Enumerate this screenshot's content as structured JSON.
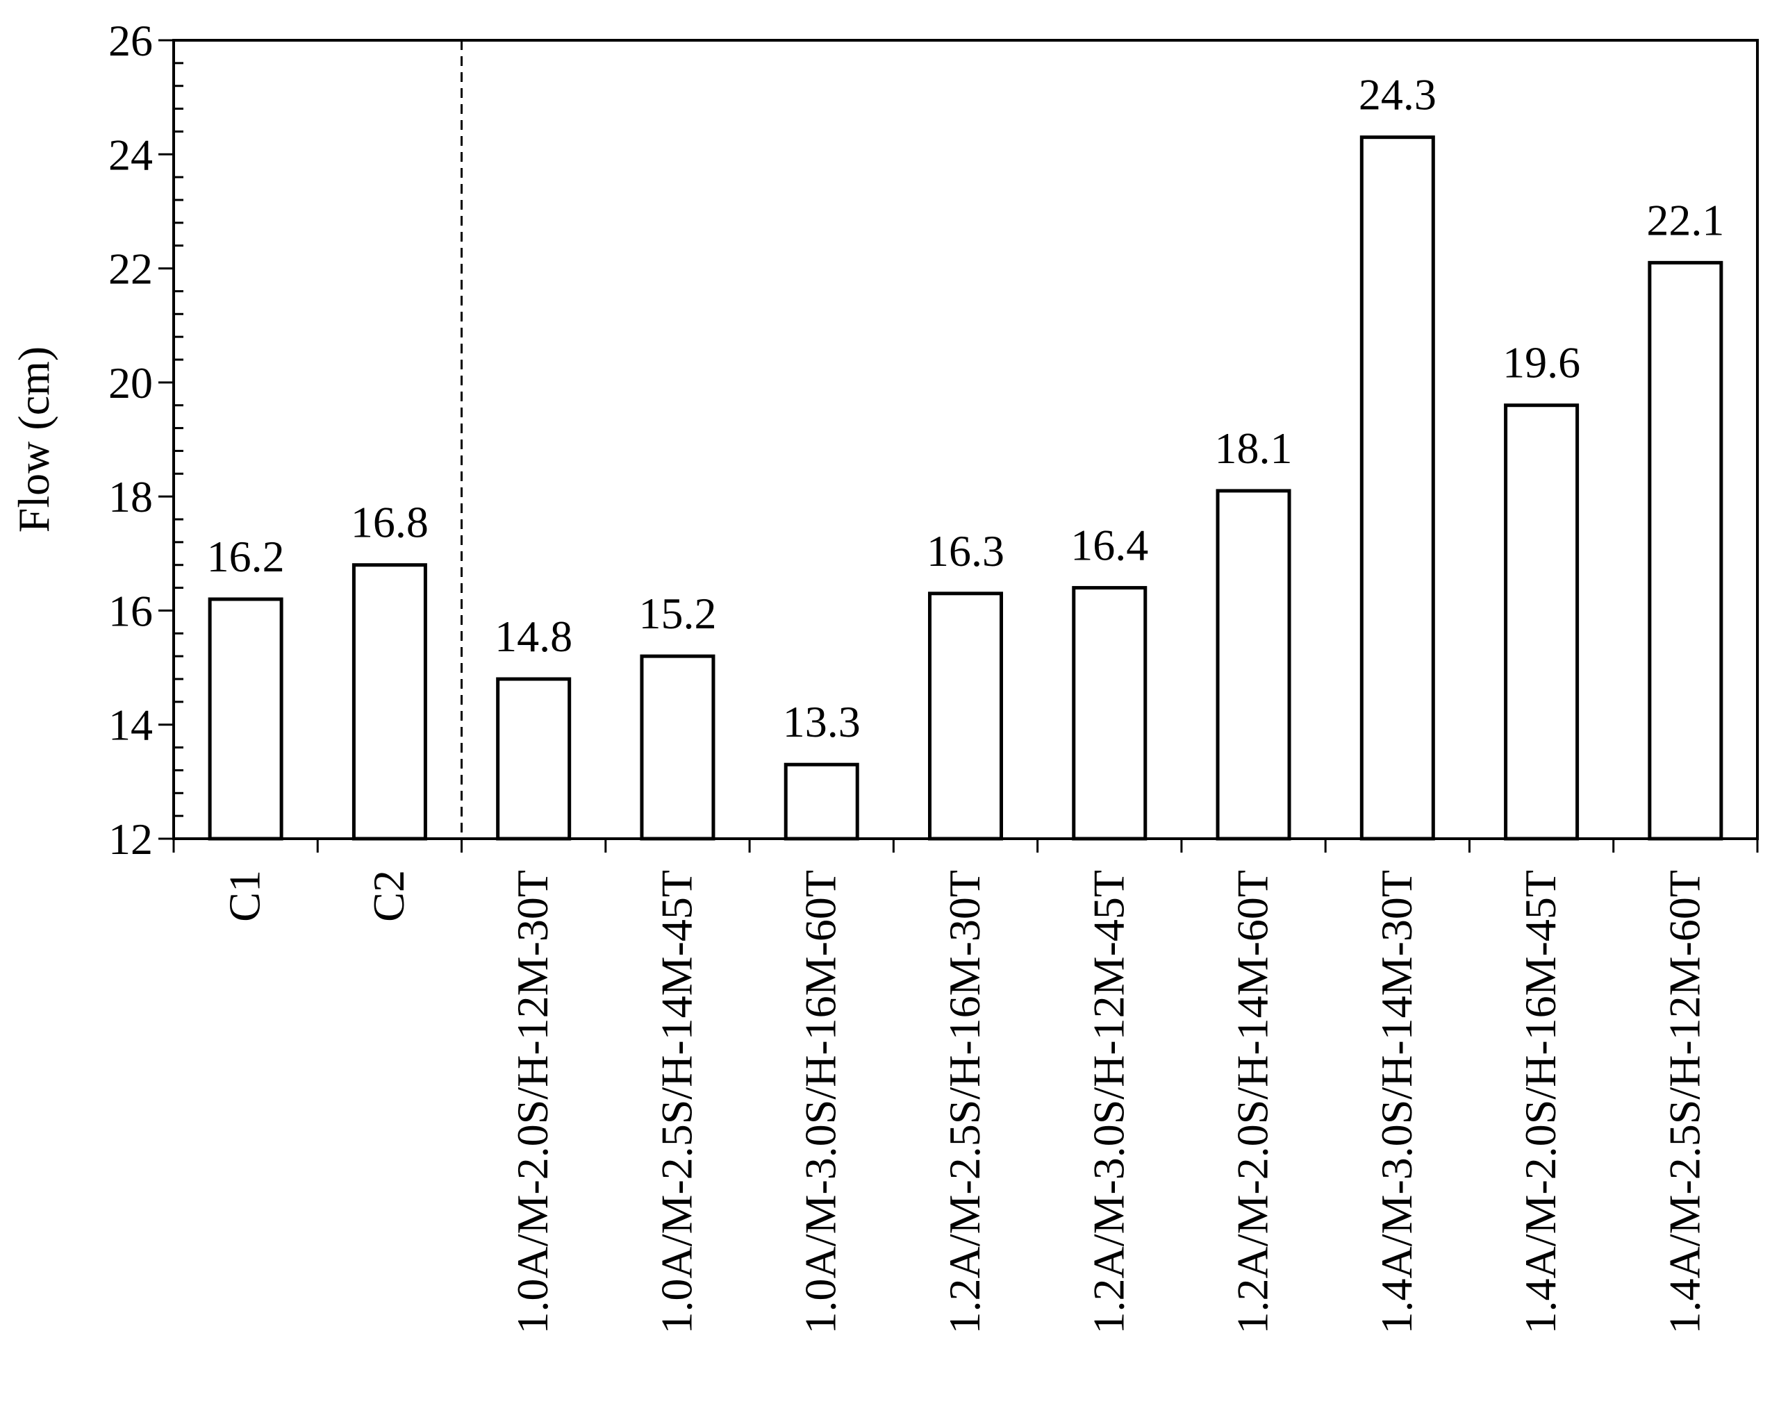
{
  "chart_data": {
    "type": "bar",
    "title": "",
    "xlabel": "",
    "ylabel": "Flow (cm)",
    "ylim": [
      12,
      26
    ],
    "yticks": [
      "12",
      "14",
      "16",
      "18",
      "20",
      "22",
      "24",
      "26"
    ],
    "categories": [
      "C1",
      "C2",
      "1.0A/M-2.0S/H-12M-30T",
      "1.0A/M-2.5S/H-14M-45T",
      "1.0A/M-3.0S/H-16M-60T",
      "1.2A/M-2.5S/H-16M-30T",
      "1.2A/M-3.0S/H-12M-45T",
      "1.2A/M-2.0S/H-14M-60T",
      "1.4A/M-3.0S/H-14M-30T",
      "1.4A/M-2.0S/H-16M-45T",
      "1.4A/M-2.5S/H-12M-60T"
    ],
    "values": [
      16.2,
      16.8,
      14.8,
      15.2,
      13.3,
      16.3,
      16.4,
      18.1,
      24.3,
      19.6,
      22.1
    ],
    "data_labels": [
      "16.2",
      "16.8",
      "14.8",
      "15.2",
      "13.3",
      "16.3",
      "16.4",
      "18.1",
      "24.3",
      "19.6",
      "22.1"
    ],
    "bar_fill": "#ffffff",
    "bar_stroke": "#000000",
    "grid": false,
    "legend": "none",
    "separator": {
      "after_category_index": 1,
      "style": "dashed"
    }
  }
}
